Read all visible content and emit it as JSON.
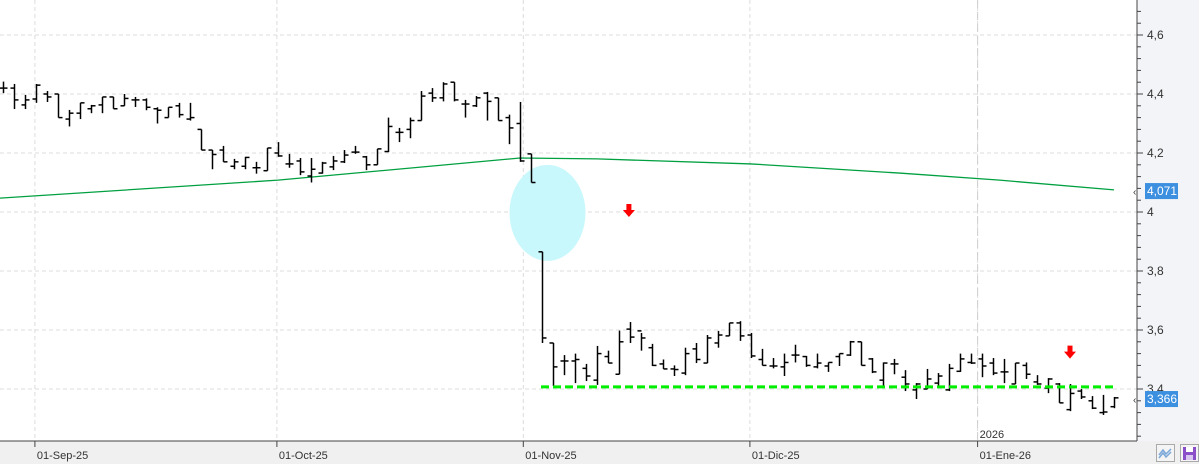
{
  "chart_data": {
    "type": "ohlc",
    "title": "",
    "xlabel": "",
    "ylabel": "",
    "ylim": [
      3.23,
      4.72
    ],
    "y_ticks": [
      "4,6",
      "4,4",
      "4,2",
      "4",
      "3,8",
      "3,6",
      "3,4"
    ],
    "y_tick_values": [
      4.6,
      4.4,
      4.2,
      4.0,
      3.8,
      3.6,
      3.4
    ],
    "x_ticks": [
      {
        "label": "01-Sep-25",
        "bar": 2.9
      },
      {
        "label": "01-Oct-25",
        "bar": 24.9
      },
      {
        "label": "01-Nov-25",
        "bar": 47.3
      },
      {
        "label": "01-Dic-25",
        "bar": 67.9
      },
      {
        "label": "01-Ene-26",
        "bar": 88.6
      }
    ],
    "year_marker": {
      "label": "2026",
      "bar": 88.6
    },
    "grid": true,
    "colors": {
      "bars": "#000000",
      "moving_average": "#00a040",
      "support": "#00ee00",
      "arrow": "#ff0000",
      "highlight": "#c8f8fc",
      "price_label": "#3d8fe0"
    },
    "ohlc": [
      [
        4.42,
        4.442,
        4.403,
        4.42
      ],
      [
        4.42,
        4.434,
        4.349,
        4.38
      ],
      [
        4.363,
        4.397,
        4.349,
        4.38
      ],
      [
        4.383,
        4.434,
        4.37,
        4.43
      ],
      [
        4.4,
        4.41,
        4.373,
        4.39
      ],
      [
        4.4,
        4.4,
        4.32,
        4.32
      ],
      [
        4.315,
        4.346,
        4.29,
        4.335
      ],
      [
        4.335,
        4.37,
        4.315,
        4.37
      ],
      [
        4.35,
        4.363,
        4.335,
        4.36
      ],
      [
        4.363,
        4.39,
        4.335,
        4.39
      ],
      [
        4.39,
        4.39,
        4.35,
        4.35
      ],
      [
        4.36,
        4.4,
        4.36,
        4.385
      ],
      [
        4.38,
        4.39,
        4.356,
        4.38
      ],
      [
        4.38,
        4.385,
        4.345,
        4.355
      ],
      [
        4.35,
        4.355,
        4.3,
        4.345
      ],
      [
        4.32,
        4.355,
        4.32,
        4.355
      ],
      [
        4.36,
        4.37,
        4.32,
        4.33
      ],
      [
        4.315,
        4.37,
        4.31,
        4.32
      ],
      [
        4.28,
        4.28,
        4.21,
        4.21
      ],
      [
        4.21,
        4.21,
        4.145,
        4.195
      ],
      [
        4.21,
        4.224,
        4.17,
        4.17
      ],
      [
        4.155,
        4.18,
        4.145,
        4.17
      ],
      [
        4.155,
        4.187,
        4.145,
        4.185
      ],
      [
        4.15,
        4.17,
        4.13,
        4.15
      ],
      [
        4.14,
        4.217,
        4.14,
        4.217
      ],
      [
        4.2,
        4.237,
        4.187,
        4.19
      ],
      [
        4.163,
        4.197,
        4.15,
        4.163
      ],
      [
        4.173,
        4.183,
        4.125,
        4.136
      ],
      [
        4.122,
        4.183,
        4.1,
        4.145
      ],
      [
        4.132,
        4.17,
        4.13,
        4.166
      ],
      [
        4.153,
        4.19,
        4.142,
        4.173
      ],
      [
        4.17,
        4.21,
        4.166,
        4.193
      ],
      [
        4.203,
        4.224,
        4.197,
        4.203
      ],
      [
        4.187,
        4.19,
        4.142,
        4.16
      ],
      [
        4.16,
        4.214,
        4.16,
        4.214
      ],
      [
        4.205,
        4.32,
        4.203,
        4.29
      ],
      [
        4.27,
        4.285,
        4.237,
        4.27
      ],
      [
        4.28,
        4.32,
        4.25,
        4.31
      ],
      [
        4.31,
        4.41,
        4.31,
        4.393
      ],
      [
        4.403,
        4.42,
        4.373,
        4.387
      ],
      [
        4.387,
        4.44,
        4.375,
        4.434
      ],
      [
        4.44,
        4.44,
        4.375,
        4.38
      ],
      [
        4.366,
        4.38,
        4.32,
        4.366
      ],
      [
        4.36,
        4.393,
        4.356,
        4.387
      ],
      [
        4.403,
        4.407,
        4.31,
        4.375
      ],
      [
        4.387,
        4.387,
        4.31,
        4.31
      ],
      [
        4.32,
        4.33,
        4.23,
        4.285
      ],
      [
        4.3,
        4.373,
        4.17,
        4.173
      ],
      [
        4.197,
        4.197,
        4.1,
        4.1
      ],
      [
        3.865,
        3.865,
        3.556,
        3.573
      ],
      [
        3.556,
        3.556,
        3.41,
        3.475
      ],
      [
        3.495,
        3.515,
        3.447,
        3.495
      ],
      [
        3.495,
        3.52,
        3.42,
        3.5
      ],
      [
        3.47,
        3.485,
        3.427,
        3.444
      ],
      [
        3.43,
        3.546,
        3.414,
        3.52
      ],
      [
        3.51,
        3.53,
        3.488,
        3.488
      ],
      [
        3.45,
        3.598,
        3.45,
        3.56
      ],
      [
        3.603,
        3.627,
        3.556,
        3.576
      ],
      [
        3.597,
        3.59,
        3.53,
        3.573
      ],
      [
        3.54,
        3.553,
        3.478,
        3.48
      ],
      [
        3.485,
        3.5,
        3.468,
        3.468
      ],
      [
        3.468,
        3.48,
        3.444,
        3.466
      ],
      [
        3.454,
        3.54,
        3.447,
        3.52
      ],
      [
        3.536,
        3.556,
        3.488,
        3.5
      ],
      [
        3.488,
        3.583,
        3.488,
        3.573
      ],
      [
        3.556,
        3.597,
        3.54,
        3.583
      ],
      [
        3.58,
        3.624,
        3.58,
        3.624
      ],
      [
        3.624,
        3.63,
        3.563,
        3.58
      ],
      [
        3.583,
        3.59,
        3.505,
        3.512
      ],
      [
        3.5,
        3.536,
        3.48,
        3.48
      ],
      [
        3.478,
        3.505,
        3.47,
        3.478
      ],
      [
        3.475,
        3.52,
        3.444,
        3.49
      ],
      [
        3.515,
        3.55,
        3.49,
        3.515
      ],
      [
        3.51,
        3.512,
        3.475,
        3.48
      ],
      [
        3.475,
        3.52,
        3.47,
        3.488
      ],
      [
        3.478,
        3.49,
        3.458,
        3.49
      ],
      [
        3.51,
        3.52,
        3.478,
        3.52
      ],
      [
        3.515,
        3.563,
        3.512,
        3.56
      ],
      [
        3.56,
        3.56,
        3.48,
        3.48
      ],
      [
        3.502,
        3.505,
        3.454,
        3.458
      ],
      [
        3.43,
        3.49,
        3.41,
        3.488
      ],
      [
        3.485,
        3.502,
        3.45,
        3.485
      ],
      [
        3.44,
        3.464,
        3.393,
        3.417
      ],
      [
        3.397,
        3.42,
        3.366,
        3.417
      ],
      [
        3.4,
        3.468,
        3.4,
        3.434
      ],
      [
        3.42,
        3.454,
        3.41,
        3.444
      ],
      [
        3.397,
        3.485,
        3.393,
        3.47
      ],
      [
        3.46,
        3.52,
        3.458,
        3.502
      ],
      [
        3.49,
        3.52,
        3.485,
        3.488
      ],
      [
        3.502,
        3.52,
        3.44,
        3.478
      ],
      [
        3.488,
        3.505,
        3.447,
        3.454
      ],
      [
        3.458,
        3.502,
        3.42,
        3.458
      ],
      [
        3.417,
        3.488,
        3.417,
        3.488
      ],
      [
        3.48,
        3.49,
        3.434,
        3.45
      ],
      [
        3.424,
        3.447,
        3.414,
        3.417
      ],
      [
        3.403,
        3.437,
        3.386,
        3.434
      ],
      [
        3.417,
        3.42,
        3.353,
        3.353
      ],
      [
        3.33,
        3.417,
        3.325,
        3.385
      ],
      [
        3.393,
        3.4,
        3.366,
        3.373
      ],
      [
        3.36,
        3.376,
        3.332,
        3.335
      ],
      [
        3.32,
        3.38,
        3.312,
        3.322
      ],
      [
        3.34,
        3.373,
        3.335,
        3.37
      ]
    ],
    "moving_average": [
      {
        "bar": -0.3,
        "value": 4.047
      },
      {
        "bar": 25,
        "value": 4.108
      },
      {
        "bar": 47,
        "value": 4.183
      },
      {
        "bar": 54,
        "value": 4.18
      },
      {
        "bar": 68,
        "value": 4.163
      },
      {
        "bar": 81.5,
        "value": 4.132
      },
      {
        "bar": 90.6,
        "value": 4.108
      },
      {
        "bar": 101,
        "value": 4.075
      }
    ],
    "support_line": {
      "value": 3.407,
      "from_bar": 49,
      "to_bar": 101
    },
    "highlight_ellipse": {
      "bar": 49.5,
      "value": 3.997
    },
    "arrows": [
      {
        "bar": 56.9,
        "value": 4.0,
        "direction": "down"
      },
      {
        "bar": 97,
        "value": 3.52,
        "direction": "down"
      }
    ],
    "price_labels": [
      {
        "label": "4,071",
        "value": 4.071
      },
      {
        "label": "3,366",
        "value": 3.366
      }
    ]
  },
  "toolbar": {
    "icons": [
      "indicator-icon",
      "save-icon"
    ]
  }
}
